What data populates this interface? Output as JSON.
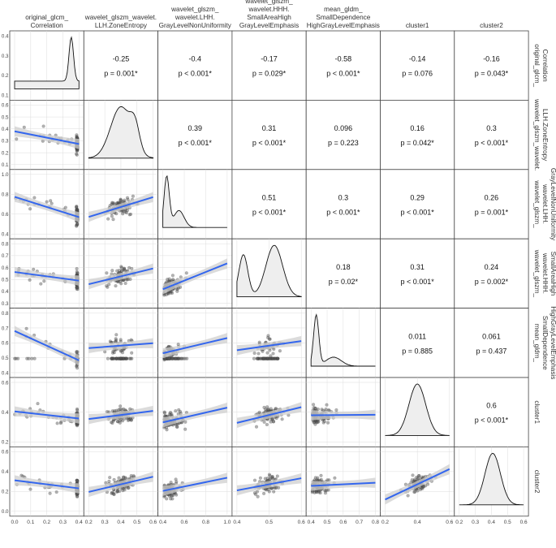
{
  "chart_data": {
    "type": "scatter_matrix",
    "variables": [
      {
        "header": [
          "original_glcm_",
          "Correlation"
        ],
        "side": [
          "original_glcm_",
          "Correlation"
        ]
      },
      {
        "header": [
          "wavelet_glszm_wavelet.",
          "LLH.ZoneEntropy"
        ],
        "side": [
          "wavelet_glszm_wavelet.",
          "LLH.ZoneEntropy"
        ]
      },
      {
        "header": [
          "wavelet_glszm_",
          "wavelet.LHH.",
          "GrayLevelNonUniformity"
        ],
        "side": [
          "wavelet_glszm_",
          "wavelet.LHH.",
          "GrayLevelNonUniformity"
        ]
      },
      {
        "header": [
          "wavelet_glszm_",
          "wavelet.HHH.",
          "SmallAreaHigh",
          "GrayLevelEmphasis"
        ],
        "side": [
          "wavelet_glszm_",
          "wavelet.HHH.",
          "SmallAreaHigh",
          "GrayLevelEmphasis"
        ]
      },
      {
        "header": [
          "mean_gldm_",
          "SmallDependence",
          "HighGrayLevelEmphasis"
        ],
        "side": [
          "mean_gldm_",
          "SmallDependence",
          "HighGrayLevelEmphasis"
        ]
      },
      {
        "header": [
          "cluster1"
        ],
        "side": [
          "cluster1"
        ]
      },
      {
        "header": [
          "cluster2"
        ],
        "side": [
          "cluster2"
        ]
      }
    ],
    "x_ticks": [
      [
        "0.0",
        "0.1",
        "0.2",
        "0.3",
        "0.4"
      ],
      [
        "0.2",
        "0.3",
        "0.4",
        "0.5",
        "0.6"
      ],
      [
        "0.4",
        "0.6",
        "0.8",
        "1.0"
      ],
      [
        "0.4",
        "0.5",
        "0.6"
      ],
      [
        "0.4",
        "0.5",
        "0.6",
        "0.7",
        "0.8"
      ],
      [
        "0.2",
        "0.4",
        "0.6"
      ],
      [
        "0.2",
        "0.3",
        "0.4",
        "0.5",
        "0.6"
      ]
    ],
    "y_ticks": [
      [
        "0.1",
        "0.2",
        "0.3",
        "0.4"
      ],
      [
        "0.1",
        "0.2",
        "0.3",
        "0.4",
        "0.5",
        "0.6"
      ],
      [
        "0.4",
        "0.6",
        "0.8",
        "1.0"
      ],
      [
        "0.3",
        "0.4",
        "0.5",
        "0.6",
        "0.7",
        "0.8"
      ],
      [
        "0.4",
        "0.5",
        "0.6",
        "0.7",
        "0.8"
      ],
      [
        "0.2",
        "0.4",
        "0.6"
      ],
      [
        "0.0",
        "0.2",
        "0.4",
        "0.6"
      ]
    ],
    "correlations": [
      {
        "row": 0,
        "col": 1,
        "r": "-0.25",
        "p": "p = 0.001*"
      },
      {
        "row": 0,
        "col": 2,
        "r": "-0.4",
        "p": "p < 0.001*"
      },
      {
        "row": 0,
        "col": 3,
        "r": "-0.17",
        "p": "p = 0.029*"
      },
      {
        "row": 0,
        "col": 4,
        "r": "-0.58",
        "p": "p < 0.001*"
      },
      {
        "row": 0,
        "col": 5,
        "r": "-0.14",
        "p": "p = 0.076"
      },
      {
        "row": 0,
        "col": 6,
        "r": "-0.16",
        "p": "p = 0.043*"
      },
      {
        "row": 1,
        "col": 2,
        "r": "0.39",
        "p": "p < 0.001*"
      },
      {
        "row": 1,
        "col": 3,
        "r": "0.31",
        "p": "p < 0.001*"
      },
      {
        "row": 1,
        "col": 4,
        "r": "0.096",
        "p": "p = 0.223"
      },
      {
        "row": 1,
        "col": 5,
        "r": "0.16",
        "p": "p = 0.042*"
      },
      {
        "row": 1,
        "col": 6,
        "r": "0.3",
        "p": "p < 0.001*"
      },
      {
        "row": 2,
        "col": 3,
        "r": "0.51",
        "p": "p < 0.001*"
      },
      {
        "row": 2,
        "col": 4,
        "r": "0.3",
        "p": "p < 0.001*"
      },
      {
        "row": 2,
        "col": 5,
        "r": "0.29",
        "p": "p < 0.001*"
      },
      {
        "row": 2,
        "col": 6,
        "r": "0.26",
        "p": "p = 0.001*"
      },
      {
        "row": 3,
        "col": 4,
        "r": "0.18",
        "p": "p = 0.02*"
      },
      {
        "row": 3,
        "col": 5,
        "r": "0.31",
        "p": "p < 0.001*"
      },
      {
        "row": 3,
        "col": 6,
        "r": "0.24",
        "p": "p = 0.002*"
      },
      {
        "row": 4,
        "col": 5,
        "r": "0.011",
        "p": "p = 0.885"
      },
      {
        "row": 4,
        "col": 6,
        "r": "0.061",
        "p": "p = 0.437"
      },
      {
        "row": 5,
        "col": 6,
        "r": "0.6",
        "p": "p < 0.001*"
      }
    ],
    "colors": {
      "line": "#3366ee",
      "band": "#cfcfcf",
      "point": "#555555",
      "density_fill": "#eeeeee",
      "grid": "#dddddd",
      "frame": "#444444"
    }
  }
}
